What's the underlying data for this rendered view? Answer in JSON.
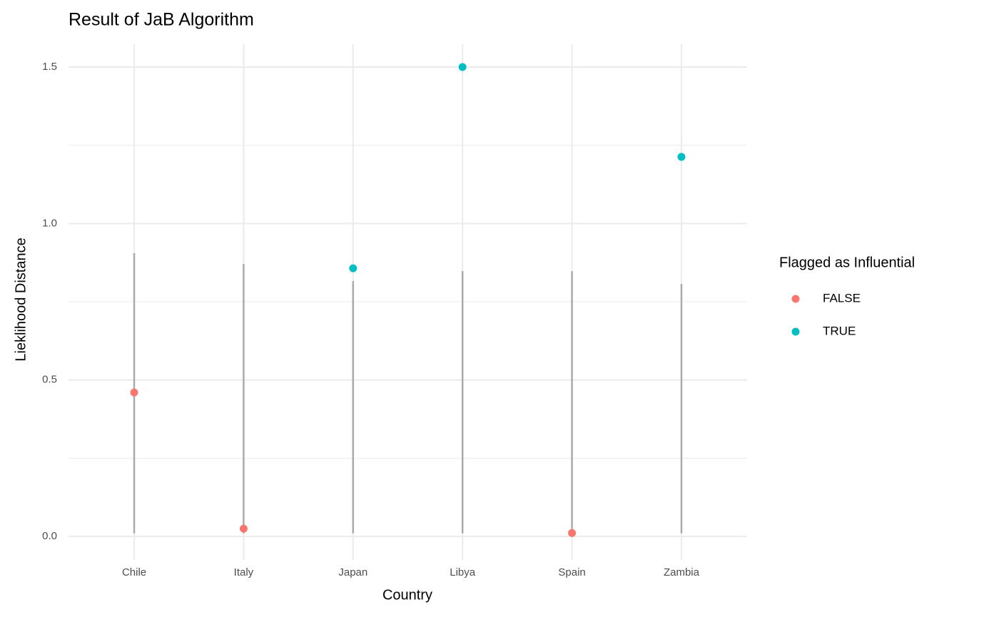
{
  "chart_data": {
    "type": "scatter",
    "title": "Result of JaB Algorithm",
    "x_label": "Country",
    "y_label": "Lieklihood Distance",
    "legend_title": "Flagged as Influential",
    "legend_position": "right",
    "grid": true,
    "categories": [
      "Chile",
      "Italy",
      "Japan",
      "Libya",
      "Spain",
      "Zambia"
    ],
    "series": [
      {
        "name": "FALSE",
        "color": "#F8766D",
        "values": [
          0.46,
          0.025,
          null,
          null,
          0.011,
          null
        ]
      },
      {
        "name": "TRUE",
        "color": "#00BFC4",
        "values": [
          null,
          null,
          0.857,
          1.5,
          null,
          1.213
        ]
      }
    ],
    "intervals": {
      "color": "#aaaaaa",
      "low": [
        0.01,
        0.01,
        0.01,
        0.01,
        0.01,
        0.01
      ],
      "high": [
        0.905,
        0.871,
        0.816,
        0.848,
        0.848,
        0.807
      ]
    },
    "ylim": [
      -0.075,
      1.573
    ],
    "yticks": [
      {
        "value": 0,
        "label": "0.0"
      },
      0.5,
      {
        "value": 1,
        "label": "1.0"
      },
      1.5
    ],
    "minor_yticks": [
      0.25,
      0.75,
      1.25
    ]
  }
}
